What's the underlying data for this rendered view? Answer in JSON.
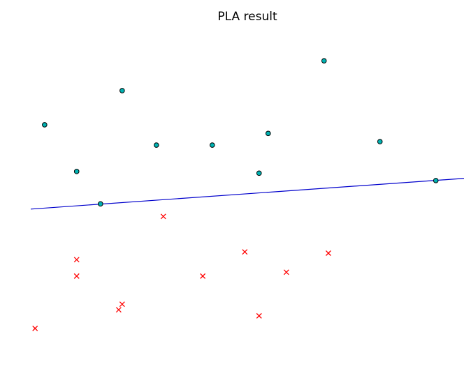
{
  "chart_data": {
    "type": "scatter",
    "title": "PLA result",
    "xlim": [
      0,
      10
    ],
    "ylim": [
      0,
      7.26
    ],
    "series": [
      {
        "marker": "circle",
        "color": "#00b2b2",
        "edgecolor": "#000000",
        "x": [
          0.32,
          2.11,
          2.9,
          4.19,
          5.48,
          6.77,
          8.06,
          1.06,
          5.27,
          1.61,
          9.35
        ],
        "values": [
          5.18,
          5.97,
          4.71,
          4.71,
          4.98,
          6.66,
          4.79,
          4.1,
          4.06,
          3.35,
          3.89
        ]
      },
      {
        "marker": "x",
        "color": "#ff0000",
        "x": [
          3.06,
          1.06,
          1.06,
          4.94,
          6.87,
          3.97,
          5.9,
          2.11,
          2.03,
          0.1,
          5.27
        ],
        "values": [
          3.06,
          2.06,
          1.68,
          2.24,
          2.21,
          1.68,
          1.77,
          1.03,
          0.9,
          0.47,
          0.76
        ]
      }
    ],
    "line": {
      "color": "#0000cc",
      "x": [
        0,
        10
      ],
      "values": [
        3.23,
        3.94
      ]
    }
  }
}
